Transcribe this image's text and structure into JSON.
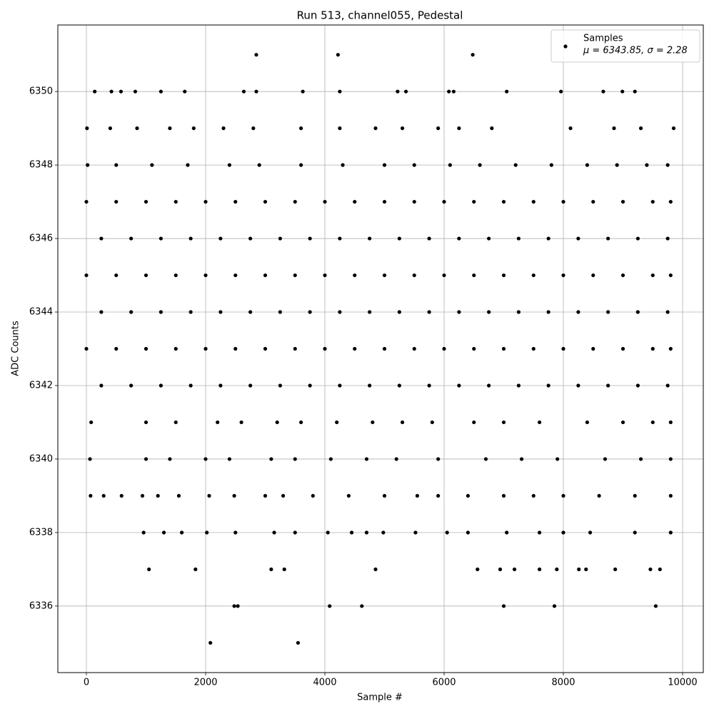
{
  "chart_data": {
    "type": "scatter",
    "title": "Run 513, channel055, Pedestal",
    "x_label": "Sample #",
    "y_label": "ADC Counts",
    "xlim": [
      -479,
      10347
    ],
    "ylim": [
      6334.19,
      6351.81
    ],
    "xticks": [
      0,
      2000,
      4000,
      6000,
      8000,
      10000
    ],
    "yticks": [
      6336,
      6338,
      6340,
      6342,
      6344,
      6346,
      6348,
      6350
    ],
    "grid": true,
    "legend": "upper right",
    "series": [
      {
        "name": "Samples",
        "legend_note": "μ = 6343.85, σ = 2.28",
        "color": "#000000",
        "x": [
          0,
          500,
          1000,
          1500,
          2000,
          2500,
          3000,
          3500,
          4000,
          4500,
          5000,
          5500,
          6000,
          6500,
          7000,
          7500,
          8000,
          8500,
          9000,
          9500,
          9800,
          250,
          750,
          1250,
          1750,
          2250,
          2750,
          3250,
          3750,
          4250,
          4750,
          5250,
          5750,
          6250,
          6750,
          7250,
          7750,
          8250,
          8750,
          9250,
          9750,
          0,
          500,
          1000,
          1500,
          2000,
          2500,
          3000,
          3500,
          4000,
          4500,
          5000,
          5500,
          6000,
          6500,
          7000,
          7500,
          8000,
          8500,
          9000,
          9500,
          9800,
          250,
          750,
          1250,
          1750,
          2250,
          2750,
          3250,
          3750,
          4250,
          4750,
          5250,
          5750,
          6250,
          6750,
          7250,
          7750,
          8250,
          8750,
          9250,
          9750,
          0,
          500,
          1000,
          1500,
          2000,
          2500,
          3000,
          3500,
          4000,
          4500,
          5000,
          5500,
          6000,
          6500,
          7000,
          7500,
          8000,
          8500,
          9000,
          9500,
          9800,
          250,
          750,
          1250,
          1750,
          2250,
          2750,
          3250,
          3750,
          4250,
          4750,
          5250,
          5750,
          6250,
          6750,
          7250,
          7750,
          8250,
          8750,
          9250,
          9750,
          80,
          1000,
          1500,
          2200,
          2600,
          3200,
          3600,
          4200,
          4800,
          5300,
          5800,
          6500,
          7000,
          7600,
          8400,
          9000,
          9500,
          9800,
          60,
          1000,
          1400,
          2000,
          2400,
          3100,
          3500,
          4100,
          4700,
          5200,
          5900,
          6700,
          7300,
          7900,
          8700,
          9300,
          9800,
          20,
          500,
          1100,
          1700,
          2400,
          2900,
          3600,
          4300,
          5000,
          5500,
          6100,
          6600,
          7200,
          7800,
          8400,
          8900,
          9400,
          9750,
          10,
          400,
          850,
          1400,
          1800,
          2300,
          2800,
          3600,
          4250,
          4850,
          5300,
          5900,
          6250,
          6800,
          8120,
          8850,
          9300,
          9850,
          140,
          420,
          580,
          820,
          1250,
          1650,
          2640,
          2850,
          3630,
          4250,
          5220,
          5360,
          6080,
          6160,
          7050,
          7960,
          8670,
          8990,
          9200,
          2850,
          4220,
          6480,
          70,
          290,
          590,
          940,
          1200,
          1550,
          2060,
          2480,
          3000,
          3300,
          3800,
          4400,
          5000,
          5550,
          5900,
          6400,
          7000,
          7500,
          8000,
          8600,
          9200,
          9800,
          960,
          1300,
          1600,
          2020,
          2500,
          3150,
          3500,
          4050,
          4450,
          4700,
          4980,
          5520,
          6050,
          6400,
          7050,
          7600,
          8000,
          8450,
          9200,
          9800,
          1050,
          1830,
          3100,
          3320,
          4850,
          6560,
          6940,
          7180,
          7600,
          7890,
          8260,
          8380,
          8870,
          9460,
          9620,
          2480,
          2540,
          4080,
          4620,
          7000,
          7850,
          9550,
          2080,
          3550
        ],
        "values": [
          6347,
          6347,
          6347,
          6347,
          6347,
          6347,
          6347,
          6347,
          6347,
          6347,
          6347,
          6347,
          6347,
          6347,
          6347,
          6347,
          6347,
          6347,
          6347,
          6347,
          6347,
          6346,
          6346,
          6346,
          6346,
          6346,
          6346,
          6346,
          6346,
          6346,
          6346,
          6346,
          6346,
          6346,
          6346,
          6346,
          6346,
          6346,
          6346,
          6346,
          6346,
          6345,
          6345,
          6345,
          6345,
          6345,
          6345,
          6345,
          6345,
          6345,
          6345,
          6345,
          6345,
          6345,
          6345,
          6345,
          6345,
          6345,
          6345,
          6345,
          6345,
          6345,
          6344,
          6344,
          6344,
          6344,
          6344,
          6344,
          6344,
          6344,
          6344,
          6344,
          6344,
          6344,
          6344,
          6344,
          6344,
          6344,
          6344,
          6344,
          6344,
          6344,
          6343,
          6343,
          6343,
          6343,
          6343,
          6343,
          6343,
          6343,
          6343,
          6343,
          6343,
          6343,
          6343,
          6343,
          6343,
          6343,
          6343,
          6343,
          6343,
          6343,
          6343,
          6342,
          6342,
          6342,
          6342,
          6342,
          6342,
          6342,
          6342,
          6342,
          6342,
          6342,
          6342,
          6342,
          6342,
          6342,
          6342,
          6342,
          6342,
          6342,
          6342,
          6341,
          6341,
          6341,
          6341,
          6341,
          6341,
          6341,
          6341,
          6341,
          6341,
          6341,
          6341,
          6341,
          6341,
          6341,
          6341,
          6341,
          6341,
          6340,
          6340,
          6340,
          6340,
          6340,
          6340,
          6340,
          6340,
          6340,
          6340,
          6340,
          6340,
          6340,
          6340,
          6340,
          6340,
          6340,
          6348,
          6348,
          6348,
          6348,
          6348,
          6348,
          6348,
          6348,
          6348,
          6348,
          6348,
          6348,
          6348,
          6348,
          6348,
          6348,
          6348,
          6348,
          6349,
          6349,
          6349,
          6349,
          6349,
          6349,
          6349,
          6349,
          6349,
          6349,
          6349,
          6349,
          6349,
          6349,
          6349,
          6349,
          6349,
          6349,
          6350,
          6350,
          6350,
          6350,
          6350,
          6350,
          6350,
          6350,
          6350,
          6350,
          6350,
          6350,
          6350,
          6350,
          6350,
          6350,
          6350,
          6350,
          6350,
          6351,
          6351,
          6351,
          6339,
          6339,
          6339,
          6339,
          6339,
          6339,
          6339,
          6339,
          6339,
          6339,
          6339,
          6339,
          6339,
          6339,
          6339,
          6339,
          6339,
          6339,
          6339,
          6339,
          6339,
          6339,
          6338,
          6338,
          6338,
          6338,
          6338,
          6338,
          6338,
          6338,
          6338,
          6338,
          6338,
          6338,
          6338,
          6338,
          6338,
          6338,
          6338,
          6338,
          6338,
          6338,
          6337,
          6337,
          6337,
          6337,
          6337,
          6337,
          6337,
          6337,
          6337,
          6337,
          6337,
          6337,
          6337,
          6337,
          6337,
          6336,
          6336,
          6336,
          6336,
          6336,
          6336,
          6336,
          6335,
          6335
        ]
      }
    ]
  }
}
